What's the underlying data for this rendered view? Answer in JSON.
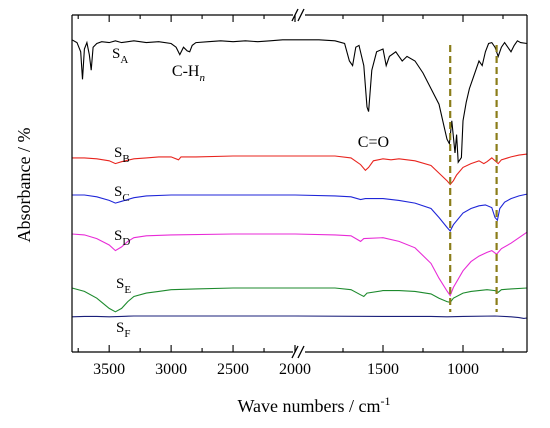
{
  "chart_data": {
    "type": "line",
    "xlabel": "Wave numbers / cm",
    "xlabel_sup": "-1",
    "ylabel": "Absorbance / %",
    "x_reversed": true,
    "axis_break": true,
    "x_segments": [
      {
        "xlim": [
          3800,
          2000
        ],
        "ticks": [
          3500,
          3000,
          2500
        ]
      },
      {
        "xlim": [
          2000,
          600
        ],
        "ticks": [
          2000,
          1500,
          1000
        ]
      }
    ],
    "annotations": [
      {
        "text": "C-H",
        "sub": "n",
        "x": 2860
      },
      {
        "text": "C=O",
        "x": 1560
      }
    ],
    "reference_lines": [
      {
        "x": 1080,
        "color": "#8b7d1a",
        "style": "dashed"
      },
      {
        "x": 790,
        "color": "#8b7d1a",
        "style": "dashed"
      }
    ],
    "series": [
      {
        "name": "S",
        "sub": "A",
        "color": "#000000",
        "points": [
          [
            3800,
            0.02
          ],
          [
            3760,
            0.05
          ],
          [
            3730,
            0.15
          ],
          [
            3715,
            0.45
          ],
          [
            3700,
            0.12
          ],
          [
            3680,
            0.05
          ],
          [
            3660,
            0.18
          ],
          [
            3645,
            0.35
          ],
          [
            3630,
            0.1
          ],
          [
            3600,
            0.06
          ],
          [
            3560,
            0.04
          ],
          [
            3500,
            0.05
          ],
          [
            3450,
            0.03
          ],
          [
            3400,
            0.05
          ],
          [
            3300,
            0.03
          ],
          [
            3200,
            0.05
          ],
          [
            3100,
            0.04
          ],
          [
            3000,
            0.06
          ],
          [
            2960,
            0.1
          ],
          [
            2930,
            0.18
          ],
          [
            2900,
            0.1
          ],
          [
            2870,
            0.14
          ],
          [
            2850,
            0.15
          ],
          [
            2830,
            0.08
          ],
          [
            2800,
            0.05
          ],
          [
            2700,
            0.04
          ],
          [
            2600,
            0.03
          ],
          [
            2500,
            0.04
          ],
          [
            2400,
            0.03
          ],
          [
            2300,
            0.04
          ],
          [
            2200,
            0.03
          ],
          [
            2100,
            0.02
          ],
          [
            2020,
            0.02
          ],
          [
            2000,
            0.02
          ],
          [
            1900,
            0.02
          ],
          [
            1800,
            0.03
          ],
          [
            1740,
            0.06
          ],
          [
            1710,
            0.25
          ],
          [
            1690,
            0.3
          ],
          [
            1670,
            0.1
          ],
          [
            1650,
            0.08
          ],
          [
            1620,
            0.3
          ],
          [
            1600,
            0.75
          ],
          [
            1590,
            0.8
          ],
          [
            1570,
            0.35
          ],
          [
            1540,
            0.15
          ],
          [
            1500,
            0.12
          ],
          [
            1480,
            0.3
          ],
          [
            1460,
            0.2
          ],
          [
            1420,
            0.15
          ],
          [
            1400,
            0.2
          ],
          [
            1380,
            0.25
          ],
          [
            1350,
            0.2
          ],
          [
            1300,
            0.25
          ],
          [
            1250,
            0.38
          ],
          [
            1200,
            0.55
          ],
          [
            1150,
            0.72
          ],
          [
            1120,
            0.95
          ],
          [
            1100,
            1.1
          ],
          [
            1085,
            1.15
          ],
          [
            1070,
            0.9
          ],
          [
            1050,
            1.25
          ],
          [
            1040,
            1.05
          ],
          [
            1030,
            1.35
          ],
          [
            1010,
            1.3
          ],
          [
            1000,
            0.9
          ],
          [
            980,
            0.7
          ],
          [
            960,
            0.55
          ],
          [
            940,
            0.45
          ],
          [
            920,
            0.35
          ],
          [
            900,
            0.25
          ],
          [
            880,
            0.3
          ],
          [
            860,
            0.15
          ],
          [
            840,
            0.06
          ],
          [
            820,
            0.05
          ],
          [
            800,
            0.1
          ],
          [
            780,
            0.2
          ],
          [
            760,
            0.1
          ],
          [
            740,
            0.05
          ],
          [
            720,
            0.1
          ],
          [
            700,
            0.15
          ],
          [
            680,
            0.08
          ],
          [
            660,
            0.03
          ],
          [
            640,
            0.05
          ],
          [
            600,
            0.06
          ]
        ]
      },
      {
        "name": "S",
        "sub": "B",
        "color": "#e8241e",
        "points": [
          [
            3800,
            0.02
          ],
          [
            3700,
            0.02
          ],
          [
            3600,
            0.03
          ],
          [
            3500,
            0.05
          ],
          [
            3450,
            0.08
          ],
          [
            3400,
            0.06
          ],
          [
            3300,
            0.03
          ],
          [
            3200,
            0.02
          ],
          [
            3100,
            0.01
          ],
          [
            3000,
            0.01
          ],
          [
            2940,
            0.04
          ],
          [
            2920,
            0.01
          ],
          [
            2800,
            0.01
          ],
          [
            2500,
            0.0
          ],
          [
            2000,
            0.0
          ],
          [
            1800,
            0.0
          ],
          [
            1700,
            0.02
          ],
          [
            1640,
            0.09
          ],
          [
            1610,
            0.15
          ],
          [
            1590,
            0.12
          ],
          [
            1560,
            0.05
          ],
          [
            1500,
            0.03
          ],
          [
            1450,
            0.04
          ],
          [
            1400,
            0.03
          ],
          [
            1300,
            0.05
          ],
          [
            1200,
            0.1
          ],
          [
            1150,
            0.18
          ],
          [
            1100,
            0.26
          ],
          [
            1080,
            0.3
          ],
          [
            1060,
            0.26
          ],
          [
            1040,
            0.2
          ],
          [
            1000,
            0.12
          ],
          [
            950,
            0.08
          ],
          [
            900,
            0.05
          ],
          [
            870,
            0.08
          ],
          [
            850,
            0.06
          ],
          [
            820,
            0.02
          ],
          [
            780,
            0.08
          ],
          [
            760,
            0.04
          ],
          [
            700,
            0.01
          ],
          [
            650,
            -0.01
          ],
          [
            600,
            -0.02
          ]
        ]
      },
      {
        "name": "S",
        "sub": "C",
        "color": "#1f26d8",
        "points": [
          [
            3800,
            0.0
          ],
          [
            3700,
            0.0
          ],
          [
            3600,
            0.02
          ],
          [
            3500,
            0.06
          ],
          [
            3450,
            0.09
          ],
          [
            3400,
            0.07
          ],
          [
            3300,
            0.03
          ],
          [
            3200,
            0.01
          ],
          [
            3000,
            0.0
          ],
          [
            2500,
            0.0
          ],
          [
            2000,
            0.0
          ],
          [
            1800,
            0.01
          ],
          [
            1700,
            0.02
          ],
          [
            1640,
            0.05
          ],
          [
            1610,
            0.04
          ],
          [
            1500,
            0.04
          ],
          [
            1400,
            0.06
          ],
          [
            1300,
            0.09
          ],
          [
            1200,
            0.15
          ],
          [
            1150,
            0.25
          ],
          [
            1100,
            0.36
          ],
          [
            1080,
            0.4
          ],
          [
            1060,
            0.33
          ],
          [
            1000,
            0.2
          ],
          [
            950,
            0.15
          ],
          [
            900,
            0.12
          ],
          [
            860,
            0.11
          ],
          [
            820,
            0.14
          ],
          [
            800,
            0.25
          ],
          [
            785,
            0.28
          ],
          [
            770,
            0.15
          ],
          [
            740,
            0.08
          ],
          [
            700,
            0.04
          ],
          [
            650,
            0.01
          ],
          [
            600,
            -0.01
          ]
        ]
      },
      {
        "name": "S",
        "sub": "D",
        "color": "#e82bd7",
        "points": [
          [
            3800,
            0.0
          ],
          [
            3700,
            0.01
          ],
          [
            3600,
            0.05
          ],
          [
            3500,
            0.12
          ],
          [
            3450,
            0.18
          ],
          [
            3400,
            0.14
          ],
          [
            3350,
            0.08
          ],
          [
            3300,
            0.04
          ],
          [
            3200,
            0.02
          ],
          [
            3000,
            0.01
          ],
          [
            2500,
            0.0
          ],
          [
            2000,
            0.0
          ],
          [
            1800,
            0.01
          ],
          [
            1700,
            0.02
          ],
          [
            1640,
            0.08
          ],
          [
            1620,
            0.05
          ],
          [
            1500,
            0.04
          ],
          [
            1400,
            0.08
          ],
          [
            1300,
            0.15
          ],
          [
            1200,
            0.32
          ],
          [
            1150,
            0.48
          ],
          [
            1100,
            0.62
          ],
          [
            1080,
            0.67
          ],
          [
            1060,
            0.58
          ],
          [
            1000,
            0.4
          ],
          [
            950,
            0.3
          ],
          [
            900,
            0.24
          ],
          [
            850,
            0.2
          ],
          [
            820,
            0.18
          ],
          [
            790,
            0.22
          ],
          [
            760,
            0.16
          ],
          [
            700,
            0.1
          ],
          [
            650,
            0.04
          ],
          [
            600,
            -0.02
          ]
        ]
      },
      {
        "name": "S",
        "sub": "E",
        "color": "#1d8a2d",
        "points": [
          [
            3800,
            0.0
          ],
          [
            3700,
            0.04
          ],
          [
            3600,
            0.12
          ],
          [
            3550,
            0.18
          ],
          [
            3500,
            0.24
          ],
          [
            3450,
            0.28
          ],
          [
            3400,
            0.24
          ],
          [
            3350,
            0.16
          ],
          [
            3300,
            0.1
          ],
          [
            3200,
            0.06
          ],
          [
            3100,
            0.04
          ],
          [
            3000,
            0.02
          ],
          [
            2800,
            0.01
          ],
          [
            2500,
            0.0
          ],
          [
            2000,
            0.0
          ],
          [
            1800,
            0.0
          ],
          [
            1700,
            0.02
          ],
          [
            1640,
            0.08
          ],
          [
            1620,
            0.1
          ],
          [
            1600,
            0.06
          ],
          [
            1500,
            0.03
          ],
          [
            1400,
            0.03
          ],
          [
            1300,
            0.04
          ],
          [
            1200,
            0.07
          ],
          [
            1150,
            0.12
          ],
          [
            1100,
            0.16
          ],
          [
            1080,
            0.17
          ],
          [
            1060,
            0.12
          ],
          [
            1000,
            0.06
          ],
          [
            950,
            0.04
          ],
          [
            900,
            0.03
          ],
          [
            850,
            0.02
          ],
          [
            800,
            0.03
          ],
          [
            780,
            0.05
          ],
          [
            760,
            0.02
          ],
          [
            700,
            0.01
          ],
          [
            600,
            0.0
          ]
        ]
      },
      {
        "name": "S",
        "sub": "F",
        "color": "#1a1f7a",
        "points": [
          [
            3800,
            0.02
          ],
          [
            3700,
            0.01
          ],
          [
            3600,
            0.01
          ],
          [
            3500,
            0.02
          ],
          [
            3400,
            0.01
          ],
          [
            3300,
            0.0
          ],
          [
            3000,
            0.0
          ],
          [
            2500,
            0.0
          ],
          [
            2000,
            0.0
          ],
          [
            1500,
            0.01
          ],
          [
            1200,
            0.01
          ],
          [
            1100,
            0.02
          ],
          [
            1000,
            0.01
          ],
          [
            800,
            0.0
          ],
          [
            700,
            0.02
          ],
          [
            650,
            0.04
          ],
          [
            620,
            0.06
          ],
          [
            600,
            0.05
          ]
        ]
      }
    ]
  }
}
